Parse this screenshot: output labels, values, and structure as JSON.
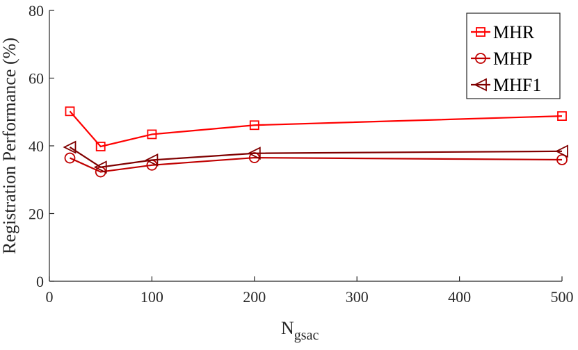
{
  "chart_data": {
    "type": "line",
    "title": "",
    "xlabel": "N",
    "xlabel_subscript": "gsac",
    "ylabel": "Registration Performance (%)",
    "xlim": [
      0,
      500
    ],
    "ylim": [
      0,
      80
    ],
    "xticks": [
      0,
      100,
      200,
      300,
      400,
      500
    ],
    "yticks": [
      0,
      20,
      40,
      60,
      80
    ],
    "grid": false,
    "legend_position": "top-right",
    "x": [
      20,
      50,
      100,
      200,
      500
    ],
    "series": [
      {
        "name": "MHR",
        "values": [
          50.2,
          39.8,
          43.4,
          46.1,
          48.8
        ],
        "color": "#ff0000",
        "marker": "square"
      },
      {
        "name": "MHP",
        "values": [
          36.4,
          32.3,
          34.3,
          36.5,
          35.9
        ],
        "color": "#c00000",
        "marker": "circle"
      },
      {
        "name": "MHF1",
        "values": [
          39.6,
          33.7,
          35.8,
          37.8,
          38.4
        ],
        "color": "#800000",
        "marker": "triangle-left"
      }
    ]
  }
}
